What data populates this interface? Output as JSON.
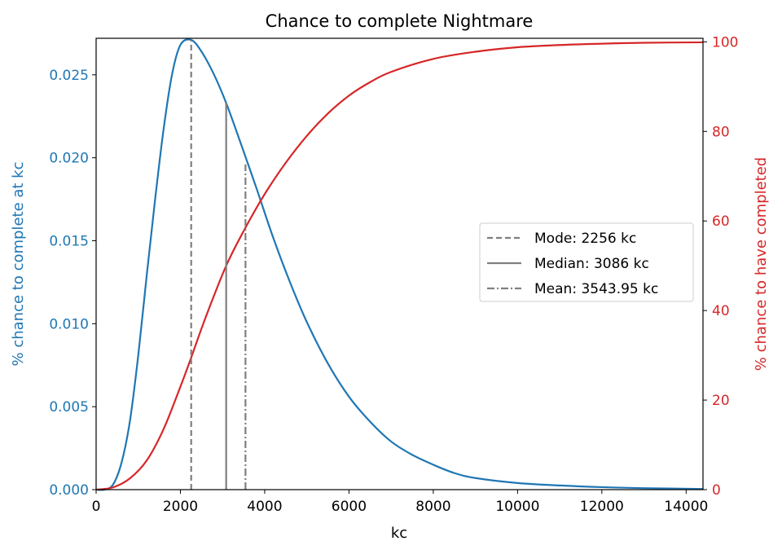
{
  "chart_data": {
    "type": "line",
    "title": "Chance to complete Nightmare",
    "xlabel": "kc",
    "ylabel_left": "% chance to complete at kc",
    "ylabel_right": "% chance to have completed",
    "xlim": [
      0,
      14400
    ],
    "ylim_left": [
      0,
      0.0272
    ],
    "ylim_right": [
      0,
      100.8
    ],
    "x_ticks": [
      "0",
      "2000",
      "4000",
      "6000",
      "8000",
      "10000",
      "12000",
      "14000"
    ],
    "y_ticks_left": [
      "0.000",
      "0.005",
      "0.010",
      "0.015",
      "0.020",
      "0.025"
    ],
    "y_ticks_right": [
      "0",
      "20",
      "40",
      "60",
      "80",
      "100"
    ],
    "grid": false,
    "legend_position": "center-right",
    "colors": {
      "left_axis": "#1f77b4",
      "right_axis": "#d62728",
      "marker_lines": "#7f7f7f"
    },
    "series": [
      {
        "name": "",
        "axis": "left",
        "x": [
          0,
          200,
          400,
          600,
          800,
          1000,
          1200,
          1400,
          1600,
          1800,
          2000,
          2256,
          2500,
          2800,
          3086,
          3400,
          3800,
          4200,
          4600,
          5000,
          5500,
          6000,
          6500,
          7000,
          7500,
          8000,
          8500,
          9000,
          10000,
          11000,
          12000,
          13000,
          14400
        ],
        "values": [
          0,
          0.0,
          0.0003,
          0.0016,
          0.0041,
          0.0081,
          0.0129,
          0.0175,
          0.0217,
          0.025,
          0.0268,
          0.0271,
          0.0264,
          0.025,
          0.0233,
          0.0211,
          0.0182,
          0.0152,
          0.0125,
          0.0101,
          0.0076,
          0.0056,
          0.0041,
          0.0029,
          0.0021,
          0.0015,
          0.001,
          0.0007,
          0.0004,
          0.00025,
          0.00015,
          9e-05,
          4e-05
        ]
      },
      {
        "name": "",
        "axis": "right",
        "x": [
          0,
          400,
          800,
          1200,
          1600,
          2000,
          2256,
          2600,
          3086,
          3544,
          4000,
          4500,
          5000,
          5500,
          6000,
          6500,
          7000,
          8000,
          9000,
          10000,
          11000,
          12000,
          13000,
          14400
        ],
        "values": [
          0,
          0.5,
          2.5,
          6.5,
          13.5,
          23,
          29.5,
          38.5,
          50,
          58.5,
          66,
          73,
          79,
          84,
          88,
          91,
          93.3,
          96.2,
          97.8,
          98.8,
          99.3,
          99.6,
          99.8,
          99.9
        ]
      }
    ],
    "markers": [
      {
        "name": "Mode: 2256 kc",
        "x": 2256,
        "y_top": 0.0271,
        "style": "dashed"
      },
      {
        "name": "Median: 3086 kc",
        "x": 3086,
        "y_top": 0.0233,
        "style": "solid"
      },
      {
        "name": "Mean: 3543.95 kc",
        "x": 3543.95,
        "y_top": 0.0196,
        "style": "dashdot"
      }
    ]
  }
}
